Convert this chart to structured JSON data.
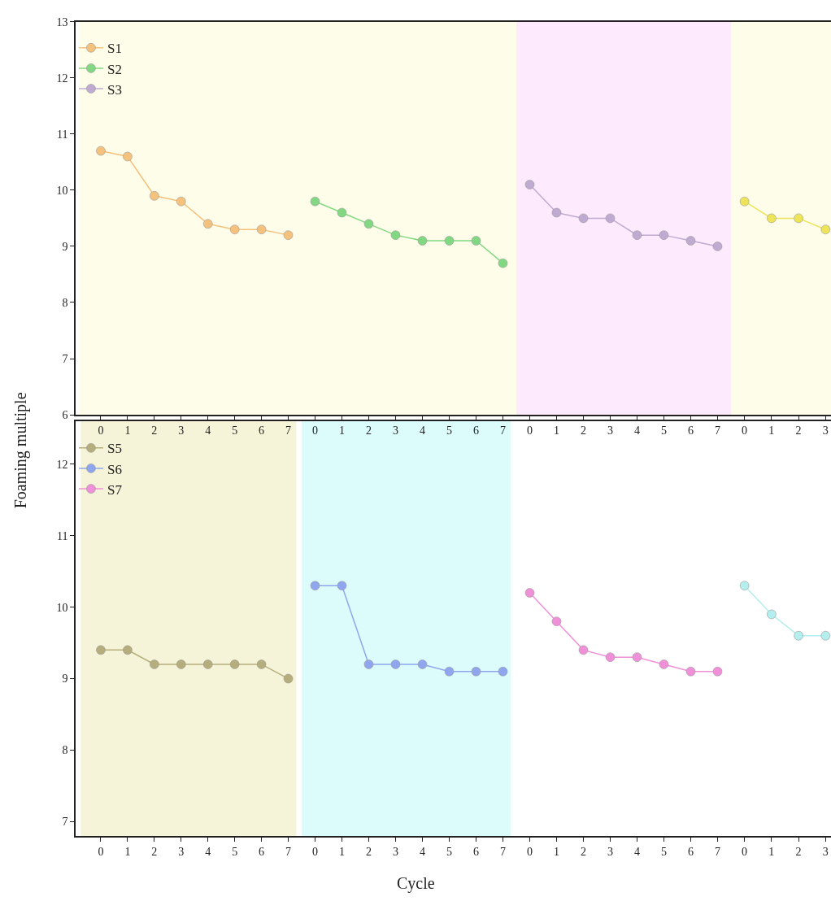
{
  "chart_data": [
    {
      "type": "line",
      "ylabel": "Foaming multiple",
      "x": [
        0,
        1,
        2,
        3,
        4,
        5,
        6,
        7
      ],
      "xlim": [
        -0.94,
        7.5
      ],
      "xticks": [
        0,
        1,
        2,
        3,
        4,
        5,
        6,
        7
      ],
      "ylim": [
        6,
        13
      ],
      "yticks": [
        6,
        7,
        8,
        9,
        10,
        11,
        12,
        13
      ],
      "legend": "top",
      "marker": "circle",
      "line_style": "solid",
      "bands": [
        {
          "axis": "x",
          "from": -0.8,
          "to": 7.5,
          "color": "#fefde9"
        }
      ],
      "series": [
        {
          "name": "S1",
          "color": "#f5c27e",
          "values": [
            10.7,
            10.6,
            9.9,
            9.8,
            9.4,
            9.3,
            9.3,
            9.2
          ]
        }
      ]
    },
    {
      "type": "line",
      "x": [
        0,
        1,
        2,
        3,
        4,
        5,
        6,
        7
      ],
      "xlim": [
        -0.5,
        7.5
      ],
      "xticks": [
        0,
        1,
        2,
        3,
        4,
        5,
        6,
        7
      ],
      "ylim": [
        6,
        13
      ],
      "tick_labels": "x",
      "legend": "top",
      "marker": "circle",
      "line_style": "solid",
      "bands": [
        {
          "axis": "x",
          "from": -0.5,
          "to": 7.5,
          "color": "#fefde9"
        }
      ],
      "series": [
        {
          "name": "S2",
          "color": "#82d882",
          "values": [
            9.8,
            9.6,
            9.4,
            9.2,
            9.1,
            9.1,
            9.1,
            8.7
          ]
        }
      ]
    },
    {
      "type": "line",
      "x": [
        0,
        1,
        2,
        3,
        4,
        5,
        6,
        7
      ],
      "xlim": [
        -0.5,
        7.5
      ],
      "xticks": [
        0,
        1,
        2,
        3,
        4,
        5,
        6,
        7
      ],
      "ylim": [
        6,
        13
      ],
      "tick_labels": "x",
      "legend": "top",
      "marker": "circle",
      "line_style": "solid",
      "bands": [
        {
          "axis": "x",
          "from": -0.5,
          "to": 7.5,
          "color": "#fdeafc"
        }
      ],
      "series": [
        {
          "name": "S3",
          "color": "#bfaad2",
          "values": [
            10.1,
            9.6,
            9.5,
            9.5,
            9.2,
            9.2,
            9.1,
            9.0
          ]
        }
      ]
    },
    {
      "type": "line",
      "x": [
        0,
        1,
        2,
        3
      ],
      "xlim": [
        -0.5,
        3.2
      ],
      "xticks": [
        0,
        1,
        2,
        3
      ],
      "ylim": [
        6,
        13
      ],
      "tick_labels": "x",
      "marker": "circle",
      "line_style": "solid",
      "bands": [
        {
          "axis": "x",
          "from": -0.5,
          "to": 3.2,
          "color": "#fefde9"
        }
      ],
      "series": [
        {
          "color": "#eee45a",
          "values": [
            9.8,
            9.5,
            9.5,
            9.3
          ]
        }
      ]
    },
    {
      "type": "line",
      "x": [
        0,
        1,
        2,
        3,
        4,
        5,
        6,
        7
      ],
      "xlim": [
        -0.94,
        7.5
      ],
      "xticks": [
        0,
        1,
        2,
        3,
        4,
        5,
        6,
        7
      ],
      "ylim": [
        6.8,
        12.6
      ],
      "yticks": [
        7,
        8,
        9,
        10,
        11,
        12
      ],
      "legend": "top",
      "marker": "circle",
      "line_style": "solid",
      "bands": [
        {
          "axis": "x",
          "from": -0.75,
          "to": 7.3,
          "color": "#f6f4d8"
        }
      ],
      "series": [
        {
          "name": "S5",
          "color": "#b5ae7c",
          "values": [
            9.4,
            9.4,
            9.2,
            9.2,
            9.2,
            9.2,
            9.2,
            9.0
          ]
        }
      ]
    },
    {
      "type": "line",
      "x": [
        0,
        1,
        2,
        3,
        4,
        5,
        6,
        7
      ],
      "xlim": [
        -0.5,
        7.5
      ],
      "xticks": [
        0,
        1,
        2,
        3,
        4,
        5,
        6,
        7
      ],
      "ylim": [
        6.8,
        12.6
      ],
      "tick_labels": "x",
      "legend": "top",
      "marker": "circle",
      "line_style": "solid",
      "bands": [
        {
          "axis": "x",
          "from": -0.7,
          "to": 7.3,
          "color": "#dcfcfc"
        }
      ],
      "series": [
        {
          "name": "S6",
          "color": "#8fa6ee",
          "values": [
            10.3,
            10.3,
            9.2,
            9.2,
            9.2,
            9.1,
            9.1,
            9.1
          ]
        }
      ]
    },
    {
      "type": "line",
      "xlabel": "Cycle",
      "x": [
        0,
        1,
        2,
        3,
        4,
        5,
        6,
        7
      ],
      "xlim": [
        -0.5,
        7.5
      ],
      "xticks": [
        0,
        1,
        2,
        3,
        4,
        5,
        6,
        7
      ],
      "ylim": [
        6.8,
        12.6
      ],
      "tick_labels": "x",
      "legend": "top",
      "marker": "circle",
      "line_style": "solid",
      "series": [
        {
          "name": "S7",
          "color": "#f090d8",
          "values": [
            10.2,
            9.8,
            9.4,
            9.3,
            9.3,
            9.2,
            9.1,
            9.1
          ]
        }
      ]
    },
    {
      "type": "line",
      "x": [
        0,
        1,
        2,
        3
      ],
      "xlim": [
        -0.5,
        3.2
      ],
      "xticks": [
        0,
        1,
        2,
        3
      ],
      "ylim": [
        6.8,
        12.6
      ],
      "tick_labels": "x",
      "marker": "circle",
      "line_style": "solid",
      "series": [
        {
          "color": "#b4eeee",
          "values": [
            10.3,
            9.9,
            9.6,
            9.6
          ]
        }
      ]
    }
  ]
}
